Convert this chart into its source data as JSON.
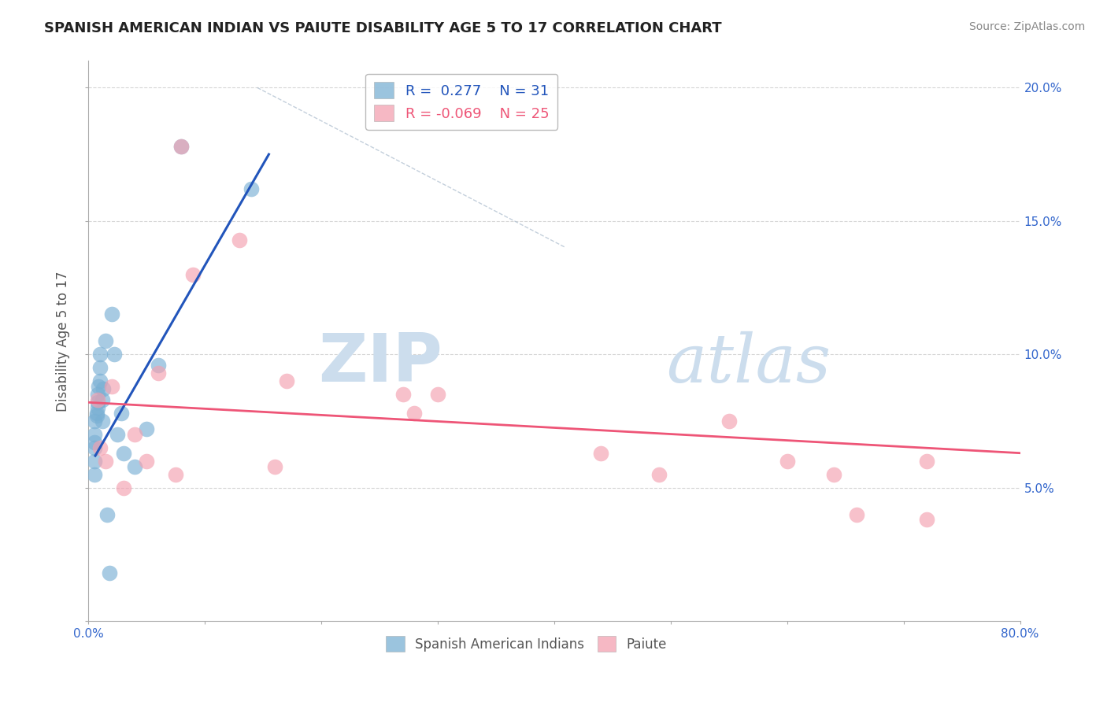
{
  "title": "SPANISH AMERICAN INDIAN VS PAIUTE DISABILITY AGE 5 TO 17 CORRELATION CHART",
  "source": "Source: ZipAtlas.com",
  "ylabel": "Disability Age 5 to 17",
  "xlim": [
    0.0,
    0.8
  ],
  "ylim": [
    0.0,
    0.21
  ],
  "xticks": [
    0.0,
    0.1,
    0.2,
    0.3,
    0.4,
    0.5,
    0.6,
    0.7,
    0.8
  ],
  "xticklabels_show": [
    "0.0%",
    "",
    "",
    "",
    "",
    "",
    "",
    "",
    "80.0%"
  ],
  "yticks": [
    0.0,
    0.05,
    0.1,
    0.15,
    0.2
  ],
  "yticklabels": [
    "",
    "5.0%",
    "10.0%",
    "15.0%",
    "20.0%"
  ],
  "blue_r": 0.277,
  "blue_n": 31,
  "pink_r": -0.069,
  "pink_n": 25,
  "legend1_label": "Spanish American Indians",
  "legend2_label": "Paiute",
  "blue_scatter_x": [
    0.005,
    0.005,
    0.005,
    0.005,
    0.005,
    0.005,
    0.007,
    0.007,
    0.008,
    0.008,
    0.008,
    0.009,
    0.01,
    0.01,
    0.01,
    0.012,
    0.012,
    0.013,
    0.015,
    0.016,
    0.018,
    0.02,
    0.022,
    0.025,
    0.028,
    0.03,
    0.04,
    0.05,
    0.06,
    0.08,
    0.14
  ],
  "blue_scatter_y": [
    0.055,
    0.06,
    0.065,
    0.067,
    0.07,
    0.075,
    0.077,
    0.078,
    0.08,
    0.082,
    0.085,
    0.088,
    0.09,
    0.095,
    0.1,
    0.075,
    0.083,
    0.087,
    0.105,
    0.04,
    0.018,
    0.115,
    0.1,
    0.07,
    0.078,
    0.063,
    0.058,
    0.072,
    0.096,
    0.178,
    0.162
  ],
  "pink_scatter_x": [
    0.008,
    0.01,
    0.015,
    0.02,
    0.03,
    0.04,
    0.05,
    0.06,
    0.075,
    0.08,
    0.09,
    0.13,
    0.16,
    0.17,
    0.27,
    0.28,
    0.3,
    0.44,
    0.49,
    0.55,
    0.6,
    0.64,
    0.66,
    0.72,
    0.72
  ],
  "pink_scatter_y": [
    0.083,
    0.065,
    0.06,
    0.088,
    0.05,
    0.07,
    0.06,
    0.093,
    0.055,
    0.178,
    0.13,
    0.143,
    0.058,
    0.09,
    0.085,
    0.078,
    0.085,
    0.063,
    0.055,
    0.075,
    0.06,
    0.055,
    0.04,
    0.06,
    0.038
  ],
  "blue_line_x": [
    0.006,
    0.155
  ],
  "blue_line_y": [
    0.062,
    0.175
  ],
  "pink_line_x": [
    0.0,
    0.8
  ],
  "pink_line_y": [
    0.082,
    0.063
  ],
  "dashed_line_x": [
    0.145,
    0.41
  ],
  "dashed_line_y": [
    0.2,
    0.14
  ],
  "bg_color": "#ffffff",
  "blue_color": "#7ab0d4",
  "pink_color": "#f4a0b0",
  "blue_line_color": "#2255bb",
  "pink_line_color": "#ee5577",
  "title_color": "#222222",
  "axis_label_color": "#555555",
  "tick_color": "#3366cc",
  "watermark_text_color": "#ccdded",
  "grid_color": "#cccccc",
  "grid_linestyle": "--"
}
